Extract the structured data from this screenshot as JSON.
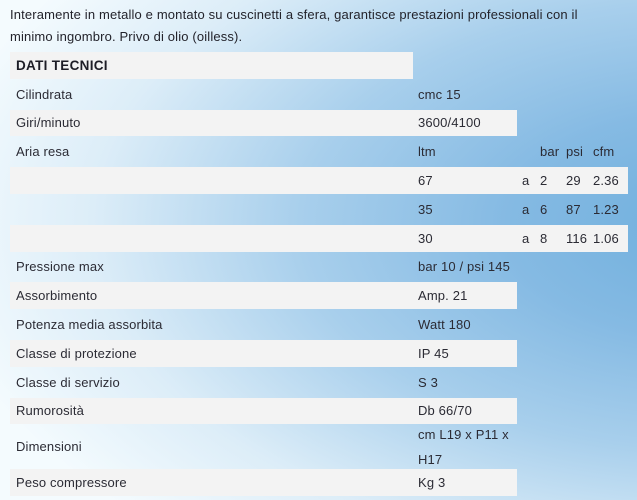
{
  "intro": {
    "text": "Interamente in metallo e montato su cuscinetti a sfera, garantisce prestazioni professionali con il minimo ingombro. Privo di olio (oilless)."
  },
  "table": {
    "title": "DATI TECNICI",
    "columns": [
      "label",
      "value",
      "a",
      "bar",
      "psi",
      "cfm"
    ],
    "rows": [
      {
        "label": "DATI TECNICI",
        "value": "",
        "a": "",
        "bar": "",
        "psi": "",
        "cfm": "",
        "style": "header",
        "bg": "label"
      },
      {
        "label": "Cilindrata",
        "value": "cmc 15",
        "a": "",
        "bar": "",
        "psi": "",
        "cfm": "",
        "bg": "none"
      },
      {
        "label": "Giri/minuto",
        "value": "3600/4100",
        "a": "",
        "bar": "",
        "psi": "",
        "cfm": "",
        "bg": "pair"
      },
      {
        "label": "Aria resa",
        "value": "ltm",
        "a": "",
        "bar": "bar",
        "psi": "psi",
        "cfm": "cfm",
        "bg": "none"
      },
      {
        "label": "",
        "value": "67",
        "a": "a",
        "bar": "2",
        "psi": "29",
        "cfm": "2.36",
        "bg": "full"
      },
      {
        "label": "",
        "value": "35",
        "a": "a",
        "bar": "6",
        "psi": "87",
        "cfm": "1.23",
        "bg": "none"
      },
      {
        "label": "",
        "value": "30",
        "a": "a",
        "bar": "8",
        "psi": "116",
        "cfm": "1.06",
        "bg": "full"
      },
      {
        "label": "Pressione max",
        "value": "bar 10 / psi 145",
        "a": "",
        "bar": "",
        "psi": "",
        "cfm": "",
        "bg": "none"
      },
      {
        "label": "Assorbimento",
        "value": "Amp. 21",
        "a": "",
        "bar": "",
        "psi": "",
        "cfm": "",
        "bg": "pair"
      },
      {
        "label": "Potenza media assorbita",
        "value": "Watt 180",
        "a": "",
        "bar": "",
        "psi": "",
        "cfm": "",
        "bg": "none"
      },
      {
        "label": "Classe di protezione",
        "value": "IP 45",
        "a": "",
        "bar": "",
        "psi": "",
        "cfm": "",
        "bg": "pair"
      },
      {
        "label": "Classe di servizio",
        "value": "S 3",
        "a": "",
        "bar": "",
        "psi": "",
        "cfm": "",
        "bg": "none"
      },
      {
        "label": "Rumorosità",
        "value": "Db 66/70",
        "a": "",
        "bar": "",
        "psi": "",
        "cfm": "",
        "bg": "pair"
      },
      {
        "label": "Dimensioni",
        "value": "cm L19 x P11 x H17",
        "a": "",
        "bar": "",
        "psi": "",
        "cfm": "",
        "bg": "none",
        "tall": true
      },
      {
        "label": "Peso compressore",
        "value": "Kg 3",
        "a": "",
        "bar": "",
        "psi": "",
        "cfm": "",
        "bg": "pair"
      }
    ]
  },
  "colors": {
    "background_highlight": "#6fafdd",
    "background_light": "#f4fbfe",
    "row_stripe": "#f3f3f3",
    "text": "#2b2b34"
  }
}
